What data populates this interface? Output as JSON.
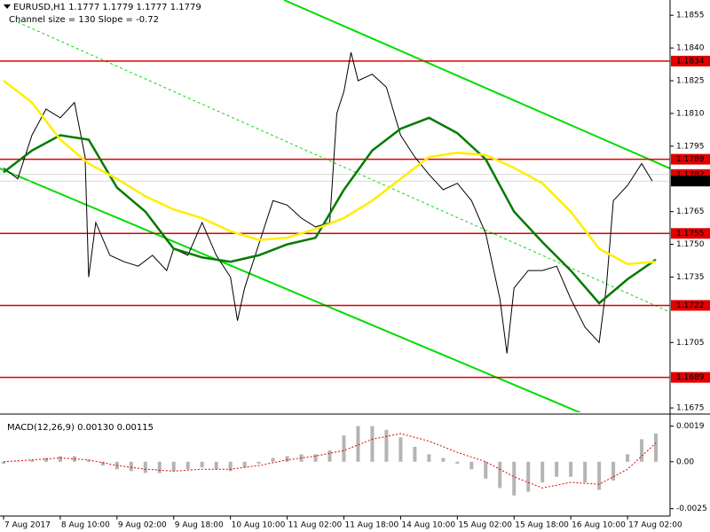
{
  "chart_data": [
    {
      "type": "line",
      "title": "EURUSD,H1  1.1777 1.1779 1.1777 1.1779",
      "subtitle": "Channel size = 130 Slope = -0.72",
      "xlim": [
        -1,
        188
      ],
      "ylim": [
        1.1673,
        1.1862
      ],
      "xticks": [
        {
          "value": 0,
          "label": "7 Aug 2017"
        },
        {
          "value": 16,
          "label": "8 Aug 10:00"
        },
        {
          "value": 32,
          "label": "9 Aug 02:00"
        },
        {
          "value": 48,
          "label": "9 Aug 18:00"
        },
        {
          "value": 64,
          "label": "10 Aug 10:00"
        },
        {
          "value": 80,
          "label": "11 Aug 02:00"
        },
        {
          "value": 96,
          "label": "11 Aug 18:00"
        },
        {
          "value": 112,
          "label": "14 Aug 10:00"
        },
        {
          "value": 128,
          "label": "15 Aug 02:00"
        },
        {
          "value": 144,
          "label": "15 Aug 18:00"
        },
        {
          "value": 160,
          "label": "16 Aug 10:00"
        },
        {
          "value": 176,
          "label": "17 Aug 02:00"
        }
      ],
      "yticks": [
        1.1855,
        {
          "value": 1.184,
          "label": "1.1840"
        },
        1.1825,
        {
          "value": 1.181,
          "label": "1.1810"
        },
        1.1795,
        1.1765,
        {
          "value": 1.175,
          "label": "1.1750"
        },
        1.1735,
        1.1705,
        1.1675
      ],
      "levels": [
        1.1834,
        1.1789,
        1.1755,
        1.1722,
        1.1689
      ],
      "level_color": "#e00000",
      "price_markers": [
        {
          "value": 1.1782,
          "color": "#e00000"
        },
        {
          "value": 1.1779,
          "color": "#000000"
        }
      ],
      "series": [
        {
          "color": "#000000",
          "x": [
            0,
            4,
            8,
            12,
            16,
            20,
            23,
            24,
            26,
            30,
            34,
            38,
            42,
            46,
            48,
            52,
            56,
            60,
            64,
            66,
            68,
            72,
            76,
            80,
            84,
            88,
            92,
            94,
            96,
            98,
            100,
            104,
            108,
            112,
            116,
            120,
            124,
            128,
            132,
            136,
            140,
            142,
            144,
            148,
            152,
            156,
            160,
            164,
            168,
            170,
            172,
            176,
            180,
            183
          ],
          "values": [
            1.1785,
            1.178,
            1.18,
            1.1812,
            1.1808,
            1.1815,
            1.179,
            1.1735,
            1.176,
            1.1745,
            1.1742,
            1.174,
            1.1745,
            1.1738,
            1.1748,
            1.1745,
            1.176,
            1.1745,
            1.1735,
            1.1715,
            1.173,
            1.175,
            1.177,
            1.1768,
            1.1762,
            1.1758,
            1.176,
            1.181,
            1.182,
            1.1838,
            1.1825,
            1.1828,
            1.1822,
            1.18,
            1.179,
            1.1782,
            1.1775,
            1.1778,
            1.177,
            1.1755,
            1.1725,
            1.17,
            1.173,
            1.1738,
            1.1738,
            1.174,
            1.1725,
            1.1712,
            1.1705,
            1.173,
            1.177,
            1.1777,
            1.1787,
            1.1779
          ]
        },
        {
          "color": "#007a00",
          "x": [
            0,
            8,
            16,
            24,
            32,
            40,
            48,
            56,
            64,
            72,
            80,
            88,
            96,
            104,
            112,
            120,
            128,
            136,
            144,
            152,
            160,
            168,
            176,
            184
          ],
          "values": [
            1.1783,
            1.1793,
            1.18,
            1.1798,
            1.1776,
            1.1765,
            1.1748,
            1.1744,
            1.1742,
            1.1745,
            1.175,
            1.1753,
            1.1775,
            1.1793,
            1.1803,
            1.1808,
            1.1801,
            1.1789,
            1.1765,
            1.1751,
            1.1738,
            1.1723,
            1.1734,
            1.1743
          ]
        },
        {
          "color": "#ffee00",
          "x": [
            0,
            8,
            16,
            24,
            32,
            40,
            48,
            56,
            64,
            72,
            80,
            88,
            96,
            104,
            112,
            120,
            128,
            136,
            144,
            152,
            160,
            168,
            176,
            184
          ],
          "values": [
            1.1825,
            1.1815,
            1.1798,
            1.1787,
            1.178,
            1.1772,
            1.1766,
            1.1762,
            1.1756,
            1.1752,
            1.1753,
            1.1757,
            1.1762,
            1.177,
            1.178,
            1.179,
            1.1792,
            1.1791,
            1.1785,
            1.1778,
            1.1765,
            1.1748,
            1.1741,
            1.1742
          ]
        }
      ]
    },
    {
      "type": "bar",
      "title": "MACD(12,26,9) 0.00130 0.00115",
      "xlim": [
        -1,
        188
      ],
      "ylim": [
        -0.0028,
        0.0024
      ],
      "yticks": [
        0.0019,
        {
          "value": 0,
          "label": "0.00"
        },
        -0.0025
      ],
      "series": [
        {
          "color": "#b4b4b4",
          "x": [
            0,
            4,
            8,
            12,
            16,
            20,
            24,
            28,
            32,
            36,
            40,
            44,
            48,
            52,
            56,
            60,
            64,
            68,
            72,
            76,
            80,
            84,
            88,
            92,
            96,
            100,
            104,
            108,
            112,
            116,
            120,
            124,
            128,
            132,
            136,
            140,
            144,
            148,
            152,
            156,
            160,
            164,
            168,
            172,
            176,
            180,
            184
          ],
          "values": [
            -0.0001,
            0,
            0.0001,
            0.0002,
            0.0003,
            0.0003,
            0.0001,
            -0.0002,
            -0.0004,
            -0.0005,
            -0.0006,
            -0.0006,
            -0.0005,
            -0.0004,
            -0.0003,
            -0.0004,
            -0.0005,
            -0.0003,
            -0.0001,
            0.0002,
            0.0003,
            0.0004,
            0.0004,
            0.0006,
            0.0014,
            0.0019,
            0.0019,
            0.0017,
            0.0013,
            0.0008,
            0.0004,
            0.0002,
            -0.0001,
            -0.0004,
            -0.0009,
            -0.0014,
            -0.0018,
            -0.0016,
            -0.0011,
            -0.0008,
            -0.0008,
            -0.0011,
            -0.0015,
            -0.001,
            0.0004,
            0.0012,
            0.0015
          ]
        },
        {
          "type": "line",
          "color": "#e00000",
          "dash": true,
          "x": [
            0,
            8,
            16,
            24,
            32,
            40,
            48,
            56,
            64,
            72,
            80,
            88,
            96,
            104,
            112,
            120,
            128,
            136,
            144,
            152,
            160,
            168,
            176,
            184
          ],
          "values": [
            0,
            0.0001,
            0.0002,
            0.0001,
            -0.0002,
            -0.0004,
            -0.0005,
            -0.0004,
            -0.0004,
            -0.0002,
            0.0001,
            0.0003,
            0.0006,
            0.0012,
            0.0015,
            0.0011,
            0.0005,
            0,
            -0.0008,
            -0.0014,
            -0.0011,
            -0.0012,
            -0.0004,
            0.001
          ]
        }
      ]
    }
  ]
}
